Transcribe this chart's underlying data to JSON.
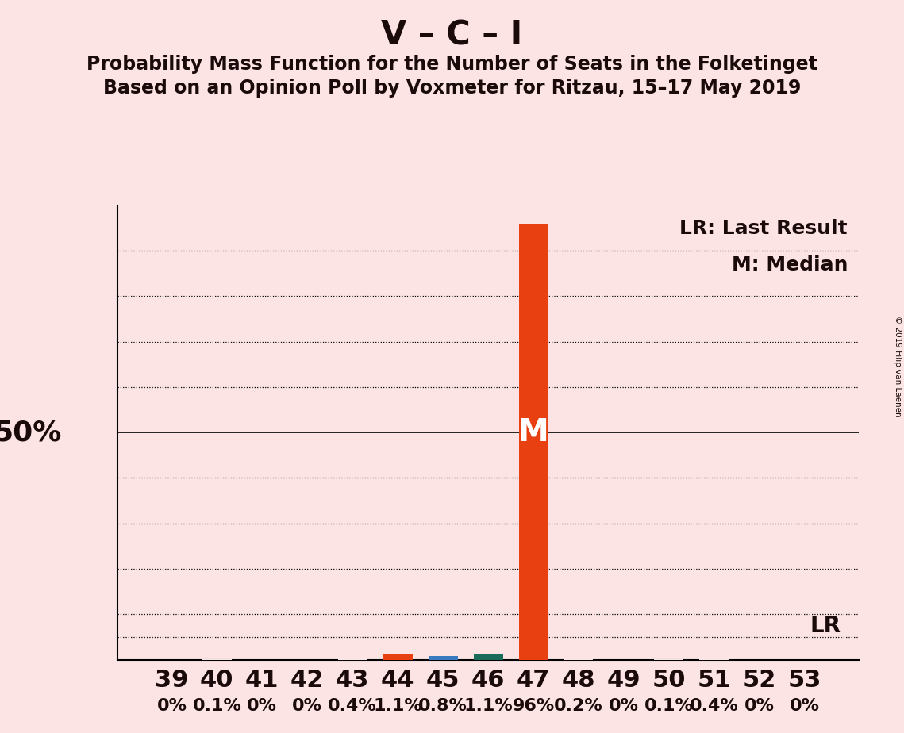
{
  "title": "V – C – I",
  "subtitle1": "Probability Mass Function for the Number of Seats in the Folketinget",
  "subtitle2": "Based on an Opinion Poll by Voxmeter for Ritzau, 15–17 May 2019",
  "copyright": "© 2019 Filip van Laenen",
  "seats": [
    39,
    40,
    41,
    42,
    43,
    44,
    45,
    46,
    47,
    48,
    49,
    50,
    51,
    52,
    53
  ],
  "probabilities": [
    0.0,
    0.1,
    0.0,
    0.0,
    0.4,
    1.1,
    0.8,
    1.1,
    96.0,
    0.2,
    0.0,
    0.1,
    0.4,
    0.0,
    0.0
  ],
  "bar_colors": [
    "#fce4e4",
    "#fce4e4",
    "#fce4e4",
    "#fce4e4",
    "#fce4e4",
    "#e84010",
    "#3a7abf",
    "#1a6b5a",
    "#e84010",
    "#fce4e4",
    "#fce4e4",
    "#fce4e4",
    "#fce4e4",
    "#fce4e4",
    "#fce4e4"
  ],
  "median_seat": 47,
  "background_color": "#fce4e4",
  "ylabel_50": "50%",
  "legend_lr": "LR: Last Result",
  "legend_m": "M: Median",
  "lr_label": "LR",
  "median_label": "M",
  "ylim": [
    0,
    100
  ],
  "yticks_dotted": [
    10,
    20,
    30,
    40,
    60,
    70,
    80,
    90
  ],
  "ytick_solid": 50,
  "ytick_lr": 5,
  "title_fontsize": 30,
  "subtitle_fontsize": 17,
  "axis_fontsize": 22,
  "label_fontsize": 16,
  "ylabel_fontsize": 26
}
